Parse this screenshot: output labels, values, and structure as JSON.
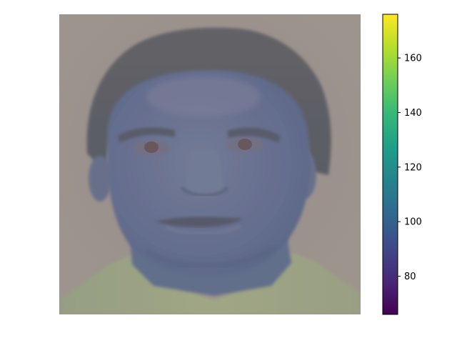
{
  "chart_data": {
    "type": "heatmap",
    "title": "",
    "xlabel": "",
    "ylabel": "",
    "axes_visible": false,
    "colormap": "viridis",
    "image_content": "grayscale face photograph rendered with viridis colormap, blended semi-transparently",
    "colorbar": {
      "location": "right",
      "vmin": 66,
      "vmax": 176,
      "ticks": [
        80,
        100,
        120,
        140,
        160
      ],
      "tick_labels": [
        "80",
        "100",
        "120",
        "140",
        "160"
      ]
    }
  },
  "colors": {
    "viridis_stops": [
      "#440154",
      "#482878",
      "#3e4989",
      "#31688e",
      "#26828e",
      "#1f9e89",
      "#35b779",
      "#6ece58",
      "#b5de2b",
      "#fde725"
    ],
    "background_tone": "#9c9690",
    "face_tone": "#5c6c8f",
    "hair_tone": "#555a62",
    "shirt_tone": "#9ba882"
  }
}
